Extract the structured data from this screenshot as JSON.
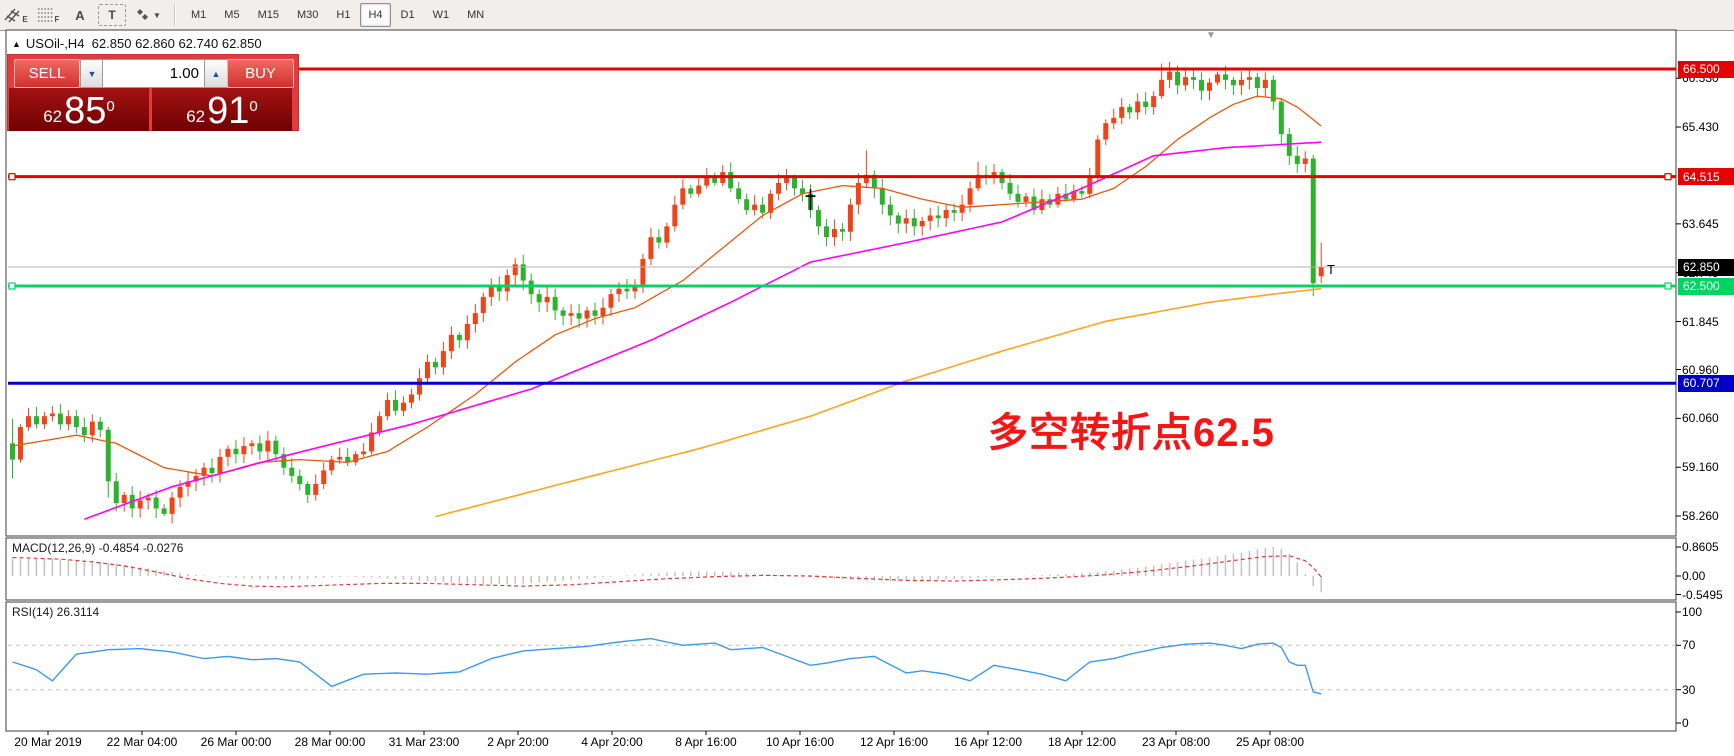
{
  "toolbar": {
    "tools": [
      {
        "name": "equidistant-channel-tool",
        "glyph": "⧄",
        "letter": "E"
      },
      {
        "name": "fibonacci-tool",
        "glyph": "☷",
        "letter": "F"
      },
      {
        "name": "text-tool",
        "glyph": "A",
        "letter": ""
      },
      {
        "name": "text-label-tool",
        "glyph": "T",
        "letter": ""
      },
      {
        "name": "arrows-tool",
        "glyph": "✦",
        "letter": "▾"
      }
    ],
    "timeframes": [
      "M1",
      "M5",
      "M15",
      "M30",
      "H1",
      "H4",
      "D1",
      "W1",
      "MN"
    ],
    "active_timeframe": "H4"
  },
  "header": {
    "marker": "▲",
    "symbol": "USOil-,H4",
    "open": "62.850",
    "high": "62.860",
    "low": "62.740",
    "close": "62.850"
  },
  "trade": {
    "sell_label": "SELL",
    "buy_label": "BUY",
    "volume": "1.00",
    "sell_price": {
      "base": "62",
      "big": "85",
      "sup": "0"
    },
    "buy_price": {
      "base": "62",
      "big": "91",
      "sup": "0"
    }
  },
  "annotation": {
    "text": "多空转折点62.5",
    "color": "#f51515"
  },
  "colors": {
    "up_candle": "#f04318",
    "down_candle": "#2db22d",
    "ma_fast": "#e8590c",
    "ma_mid": "#ff00ff",
    "ma_slow": "#ffa51e",
    "line_red": "#e60000",
    "line_green": "#00d564",
    "line_blue": "#0000c8",
    "current_price_line": "#b0b0b0",
    "macd_hist": "#c2c2c2",
    "macd_signal": "#e53935",
    "rsi_line": "#3c99f0",
    "level_dash": "#c0c0c0",
    "panel_border": "#3c3c3c"
  },
  "price_axis": {
    "ticks": [
      {
        "label": "66.330",
        "price": 66.33
      },
      {
        "label": "65.430",
        "price": 65.43
      },
      {
        "label": "63.645",
        "price": 63.645
      },
      {
        "label": "62.745",
        "price": 62.745
      },
      {
        "label": "61.845",
        "price": 61.845
      },
      {
        "label": "60.960",
        "price": 60.96
      },
      {
        "label": "60.060",
        "price": 60.06
      },
      {
        "label": "59.160",
        "price": 59.16
      },
      {
        "label": "58.260",
        "price": 58.26
      }
    ],
    "boxes": [
      {
        "label": "66.500",
        "price": 66.5,
        "bg": "#e60000"
      },
      {
        "label": "64.515",
        "price": 64.515,
        "bg": "#e60000"
      },
      {
        "label": "62.850",
        "price": 62.85,
        "bg": "#000000"
      },
      {
        "label": "62.500",
        "price": 62.5,
        "bg": "#00d564"
      },
      {
        "label": "60.707",
        "price": 60.707,
        "bg": "#0000c8"
      }
    ]
  },
  "macd_axis": [
    {
      "label": "0.8605",
      "v": 0.8605
    },
    {
      "label": "0.00",
      "v": 0
    },
    {
      "label": "-0.5495",
      "v": -0.5495
    }
  ],
  "rsi_axis": [
    {
      "label": "100",
      "v": 100
    },
    {
      "label": "70",
      "v": 70
    },
    {
      "label": "30",
      "v": 30
    },
    {
      "label": "0",
      "v": 0
    }
  ],
  "time_axis": {
    "labels": [
      "20 Mar 2019",
      "22 Mar 04:00",
      "26 Mar 00:00",
      "28 Mar 00:00",
      "31 Mar 23:00",
      "2 Apr 20:00",
      "4 Apr 20:00",
      "8 Apr 16:00",
      "10 Apr 16:00",
      "12 Apr 16:00",
      "16 Apr 12:00",
      "18 Apr 12:00",
      "23 Apr 08:00",
      "25 Apr 08:00"
    ]
  },
  "chart_data": [
    {
      "type": "candlestick",
      "title": "USOil-,H4",
      "ylim": [
        57.9,
        67.2
      ],
      "closes": [
        59.3,
        59.9,
        60.1,
        59.95,
        60.1,
        60.15,
        59.95,
        60.1,
        59.9,
        59.75,
        60.0,
        59.85,
        58.9,
        58.5,
        58.65,
        58.4,
        58.55,
        58.6,
        58.4,
        58.3,
        58.6,
        58.8,
        58.9,
        59.0,
        59.15,
        59.05,
        59.35,
        59.5,
        59.4,
        59.55,
        59.6,
        59.45,
        59.65,
        59.4,
        59.15,
        59.0,
        58.85,
        58.65,
        58.85,
        59.1,
        59.3,
        59.35,
        59.25,
        59.4,
        59.45,
        59.8,
        60.1,
        60.4,
        60.2,
        60.35,
        60.5,
        60.8,
        61.1,
        61.0,
        61.3,
        61.6,
        61.5,
        61.8,
        62.0,
        62.3,
        62.5,
        62.4,
        62.7,
        62.9,
        62.6,
        62.35,
        62.2,
        62.3,
        62.05,
        61.95,
        62.0,
        61.9,
        62.05,
        61.95,
        62.1,
        62.35,
        62.45,
        62.4,
        62.5,
        63.0,
        63.4,
        63.3,
        63.6,
        64.0,
        64.3,
        64.2,
        64.35,
        64.5,
        64.4,
        64.6,
        64.3,
        64.1,
        63.9,
        64.0,
        63.85,
        64.2,
        64.4,
        64.5,
        64.3,
        64.2,
        63.9,
        63.6,
        63.4,
        63.55,
        63.5,
        64.0,
        64.4,
        64.55,
        64.3,
        64.0,
        63.8,
        63.65,
        63.75,
        63.6,
        63.7,
        63.8,
        63.75,
        63.9,
        63.85,
        64.0,
        64.3,
        64.55,
        64.5,
        64.6,
        64.4,
        64.2,
        64.05,
        64.15,
        63.9,
        64.1,
        64.0,
        64.2,
        64.1,
        64.25,
        64.2,
        64.5,
        65.2,
        65.5,
        65.6,
        65.8,
        65.7,
        65.9,
        65.8,
        66.0,
        66.3,
        66.45,
        66.2,
        66.35,
        66.3,
        66.1,
        66.25,
        66.4,
        66.3,
        66.2,
        66.3,
        66.35,
        66.15,
        66.3,
        65.9,
        65.3,
        64.9,
        64.75,
        64.85,
        62.55,
        62.85
      ],
      "special_ohlc": {
        "0": [
          59.6,
          60.05,
          58.95,
          59.3
        ],
        "12": [
          59.85,
          59.9,
          58.6,
          58.9
        ],
        "19": [
          58.4,
          58.48,
          58.26,
          58.3
        ],
        "37": [
          58.85,
          58.9,
          58.5,
          58.65
        ],
        "107": [
          64.4,
          65.0,
          64.3,
          64.55
        ],
        "121": [
          64.3,
          64.79,
          64.25,
          64.55
        ],
        "136": [
          64.5,
          65.28,
          64.42,
          65.2
        ],
        "144": [
          66.0,
          66.6,
          65.95,
          66.3
        ],
        "147": [
          66.2,
          66.52,
          66.1,
          66.35
        ],
        "151": [
          66.25,
          66.45,
          66.2,
          66.4
        ],
        "158": [
          66.3,
          66.38,
          65.75,
          65.9
        ],
        "159": [
          65.9,
          65.95,
          65.1,
          65.3
        ],
        "163": [
          64.85,
          64.92,
          62.31,
          62.55
        ],
        "164": [
          62.68,
          63.3,
          62.55,
          62.85
        ]
      },
      "overlays": [
        {
          "name": "ma-fast",
          "waypoints": [
            [
              0,
              59.55
            ],
            [
              8,
              59.75
            ],
            [
              13,
              59.6
            ],
            [
              19,
              59.15
            ],
            [
              25,
              59.0
            ],
            [
              31,
              59.25
            ],
            [
              36,
              59.3
            ],
            [
              42,
              59.25
            ],
            [
              47,
              59.45
            ],
            [
              52,
              59.9
            ],
            [
              58,
              60.5
            ],
            [
              63,
              61.1
            ],
            [
              68,
              61.6
            ],
            [
              73,
              61.9
            ],
            [
              78,
              62.1
            ],
            [
              84,
              62.6
            ],
            [
              89,
              63.2
            ],
            [
              94,
              63.8
            ],
            [
              99,
              64.2
            ],
            [
              104,
              64.35
            ],
            [
              109,
              64.3
            ],
            [
              114,
              64.1
            ],
            [
              119,
              63.95
            ],
            [
              124,
              64.0
            ],
            [
              129,
              64.05
            ],
            [
              134,
              64.1
            ],
            [
              138,
              64.3
            ],
            [
              142,
              64.7
            ],
            [
              146,
              65.2
            ],
            [
              150,
              65.6
            ],
            [
              153,
              65.85
            ],
            [
              156,
              66.0
            ],
            [
              159,
              65.95
            ],
            [
              161,
              65.8
            ],
            [
              164,
              65.45
            ]
          ]
        },
        {
          "name": "ma-mid",
          "waypoints": [
            [
              9,
              58.2
            ],
            [
              20,
              58.8
            ],
            [
              35,
              59.4
            ],
            [
              50,
              59.95
            ],
            [
              65,
              60.6
            ],
            [
              80,
              61.5
            ],
            [
              90,
              62.2
            ],
            [
              100,
              62.94
            ],
            [
              112,
              63.3
            ],
            [
              124,
              63.68
            ],
            [
              134,
              64.3
            ],
            [
              143,
              64.9
            ],
            [
              152,
              65.05
            ],
            [
              158,
              65.1
            ],
            [
              164,
              65.15
            ]
          ]
        },
        {
          "name": "ma-slow",
          "waypoints": [
            [
              53,
              58.25
            ],
            [
              70,
              58.9
            ],
            [
              86,
              59.5
            ],
            [
              100,
              60.1
            ],
            [
              112,
              60.75
            ],
            [
              124,
              61.3
            ],
            [
              137,
              61.85
            ],
            [
              150,
              62.2
            ],
            [
              158,
              62.35
            ],
            [
              164,
              62.45
            ]
          ]
        }
      ],
      "hlines": [
        {
          "price": 66.5,
          "colorKey": "line_red",
          "width": 3,
          "handles": false
        },
        {
          "price": 64.515,
          "colorKey": "line_red",
          "width": 3,
          "handles": true
        },
        {
          "price": 62.5,
          "colorKey": "line_green",
          "width": 3,
          "handles": true
        },
        {
          "price": 60.707,
          "colorKey": "line_blue",
          "width": 3,
          "handles": false
        }
      ],
      "current_price": 62.85,
      "markers": [
        {
          "type": "cross",
          "index": 100,
          "price": 64.12
        },
        {
          "type": "text-cursor",
          "x": 1327,
          "price": 62.8,
          "glyph": "T"
        }
      ]
    },
    {
      "type": "macd-histogram",
      "label": "MACD(12,26,9) -0.4854 -0.0276",
      "ylim": [
        -0.71,
        1.13
      ],
      "hist_waypoints": [
        [
          0,
          0.52
        ],
        [
          5,
          0.5
        ],
        [
          10,
          0.45
        ],
        [
          14,
          0.33
        ],
        [
          18,
          0.18
        ],
        [
          22,
          0.06
        ],
        [
          26,
          -0.02
        ],
        [
          30,
          -0.08
        ],
        [
          34,
          -0.1
        ],
        [
          38,
          -0.06
        ],
        [
          42,
          -0.02
        ],
        [
          46,
          -0.06
        ],
        [
          50,
          -0.12
        ],
        [
          54,
          -0.18
        ],
        [
          58,
          -0.22
        ],
        [
          62,
          -0.24
        ],
        [
          66,
          -0.2
        ],
        [
          70,
          -0.12
        ],
        [
          74,
          -0.04
        ],
        [
          78,
          0.04
        ],
        [
          82,
          0.1
        ],
        [
          86,
          0.14
        ],
        [
          90,
          0.12
        ],
        [
          94,
          0.06
        ],
        [
          98,
          0.0
        ],
        [
          102,
          -0.08
        ],
        [
          106,
          -0.12
        ],
        [
          110,
          -0.15
        ],
        [
          114,
          -0.13
        ],
        [
          118,
          -0.09
        ],
        [
          122,
          -0.04
        ],
        [
          126,
          0.0
        ],
        [
          130,
          0.04
        ],
        [
          134,
          0.08
        ],
        [
          138,
          0.16
        ],
        [
          142,
          0.28
        ],
        [
          146,
          0.42
        ],
        [
          150,
          0.55
        ],
        [
          154,
          0.7
        ],
        [
          157,
          0.83
        ],
        [
          158,
          0.8605
        ],
        [
          159,
          0.8
        ],
        [
          160,
          0.65
        ],
        [
          161,
          0.4
        ],
        [
          162,
          0.05
        ],
        [
          163,
          -0.3
        ],
        [
          164,
          -0.4854
        ]
      ],
      "signal_waypoints": [
        [
          0,
          0.55
        ],
        [
          6,
          0.5
        ],
        [
          10,
          0.42
        ],
        [
          14,
          0.3
        ],
        [
          18,
          0.12
        ],
        [
          22,
          -0.08
        ],
        [
          26,
          -0.22
        ],
        [
          30,
          -0.3
        ],
        [
          34,
          -0.32
        ],
        [
          40,
          -0.27
        ],
        [
          46,
          -0.22
        ],
        [
          52,
          -0.22
        ],
        [
          58,
          -0.26
        ],
        [
          64,
          -0.3
        ],
        [
          70,
          -0.26
        ],
        [
          76,
          -0.17
        ],
        [
          82,
          -0.08
        ],
        [
          88,
          -0.02
        ],
        [
          94,
          0.02
        ],
        [
          100,
          0.0
        ],
        [
          106,
          -0.07
        ],
        [
          112,
          -0.13
        ],
        [
          118,
          -0.15
        ],
        [
          124,
          -0.11
        ],
        [
          130,
          -0.06
        ],
        [
          136,
          0.02
        ],
        [
          142,
          0.14
        ],
        [
          148,
          0.3
        ],
        [
          153,
          0.46
        ],
        [
          157,
          0.58
        ],
        [
          160,
          0.6
        ],
        [
          162,
          0.45
        ],
        [
          163,
          0.25
        ],
        [
          164,
          -0.03
        ]
      ]
    },
    {
      "type": "line",
      "label": "RSI(14) 26.3114",
      "ylim": [
        0,
        100
      ],
      "levels": [
        70,
        30
      ],
      "waypoints": [
        [
          0,
          55
        ],
        [
          3,
          48
        ],
        [
          5,
          38
        ],
        [
          8,
          62
        ],
        [
          12,
          66
        ],
        [
          16,
          67
        ],
        [
          20,
          64
        ],
        [
          24,
          58
        ],
        [
          27,
          60
        ],
        [
          30,
          57
        ],
        [
          33,
          58
        ],
        [
          36,
          55
        ],
        [
          40,
          33
        ],
        [
          44,
          44
        ],
        [
          48,
          45
        ],
        [
          52,
          44
        ],
        [
          56,
          46
        ],
        [
          60,
          58
        ],
        [
          64,
          65
        ],
        [
          68,
          67
        ],
        [
          72,
          69
        ],
        [
          76,
          73
        ],
        [
          80,
          76
        ],
        [
          84,
          70
        ],
        [
          88,
          72
        ],
        [
          90,
          66
        ],
        [
          94,
          68
        ],
        [
          97,
          60
        ],
        [
          100,
          52
        ],
        [
          102,
          54
        ],
        [
          105,
          58
        ],
        [
          108,
          60
        ],
        [
          112,
          45
        ],
        [
          114,
          47
        ],
        [
          117,
          44
        ],
        [
          120,
          38
        ],
        [
          123,
          52
        ],
        [
          126,
          48
        ],
        [
          129,
          44
        ],
        [
          132,
          38
        ],
        [
          135,
          55
        ],
        [
          138,
          58
        ],
        [
          140,
          62
        ],
        [
          144,
          68
        ],
        [
          147,
          71
        ],
        [
          150,
          72
        ],
        [
          152,
          70
        ],
        [
          154,
          67
        ],
        [
          156,
          71
        ],
        [
          158,
          72
        ],
        [
          159,
          68
        ],
        [
          160,
          55
        ],
        [
          161,
          52
        ],
        [
          162,
          52
        ],
        [
          163,
          28
        ],
        [
          164,
          26.31
        ]
      ]
    }
  ]
}
